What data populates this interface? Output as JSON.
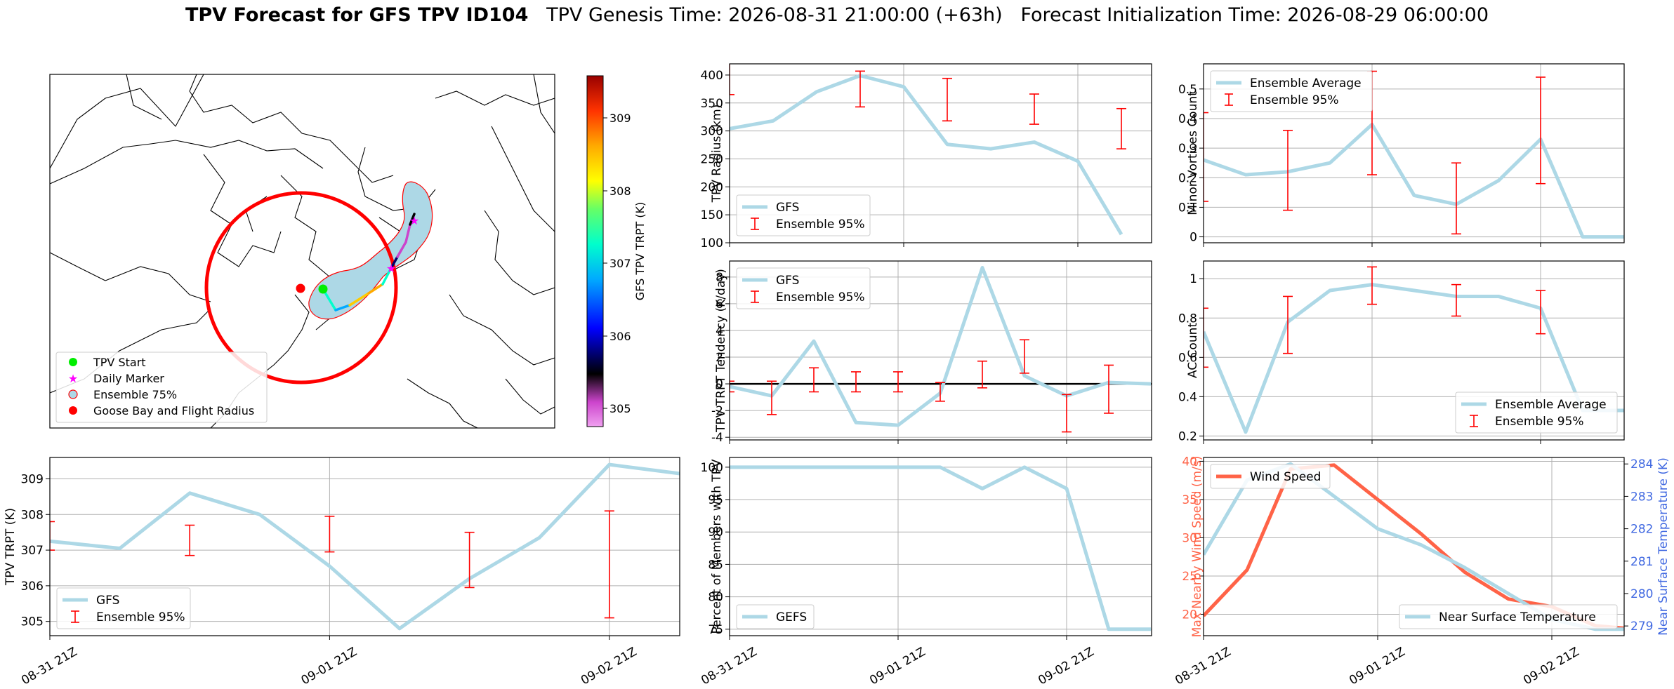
{
  "title": {
    "bold": "TPV Forecast for GFS TPV ID104",
    "rest": "   TPV Genesis Time: 2026-08-31 21:00:00 (+63h)   Forecast Initialization Time: 2026-08-29 06:00:00"
  },
  "map": {
    "legend": [
      "TPV Start",
      "Daily Marker",
      "Ensemble 75%",
      "Goose Bay and Flight Radius"
    ],
    "colorbar": {
      "label": "GFS TPV TRPT (K)",
      "ticks": [
        "309",
        "308",
        "307",
        "306",
        "305"
      ]
    },
    "colors": {
      "circle": "#ff0000",
      "ensemble_fill": "#add8e6",
      "start": "#00ee00",
      "marker": "#ff00ff",
      "goose_bay": "#ff0000"
    }
  },
  "chart_data": [
    {
      "id": "trpt",
      "type": "line",
      "ylabel": "TPV TRPT (K)",
      "x": [
        0,
        1,
        2,
        3,
        4,
        5,
        6,
        7,
        8,
        9,
        10
      ],
      "xticks": [
        "08-31 21Z",
        "09-01 21Z",
        "09-02 21Z"
      ],
      "xtick_positions": [
        0,
        4,
        8
      ],
      "xlim": [
        0,
        9
      ],
      "ylim": [
        304.6,
        309.6
      ],
      "yticks": [
        305,
        306,
        307,
        308,
        309
      ],
      "legend_loc": "lower left",
      "series": [
        {
          "name": "GFS",
          "type": "line",
          "color": "#add8e6",
          "values": [
            307.25,
            307.05,
            308.6,
            308.0,
            306.55,
            304.8,
            306.2,
            307.35,
            309.4,
            309.15,
            309.1
          ]
        }
      ],
      "errorbars": {
        "name": "Ensemble 95%",
        "color": "#ff0000",
        "x": [
          0,
          2,
          4,
          6,
          8
        ],
        "low": [
          307.0,
          306.85,
          306.95,
          305.95,
          305.1
        ],
        "high": [
          307.8,
          307.7,
          307.95,
          307.5,
          308.1
        ]
      }
    },
    {
      "id": "radius",
      "type": "line",
      "ylabel": "TPV Radius (km)",
      "x": [
        0,
        1,
        2,
        3,
        4,
        5,
        6,
        7,
        8,
        9
      ],
      "xlim": [
        0,
        9
      ],
      "ylim": [
        100,
        420
      ],
      "yticks": [
        100,
        150,
        200,
        250,
        300,
        350,
        400
      ],
      "legend_loc": "lower left",
      "series": [
        {
          "name": "GFS",
          "type": "line",
          "color": "#add8e6",
          "values": [
            304,
            318,
            370,
            399,
            379,
            276,
            268,
            280,
            246,
            115
          ]
        }
      ],
      "errorbars": {
        "name": "Ensemble 95%",
        "color": "#ff0000",
        "x": [
          0,
          3,
          5,
          7,
          9
        ],
        "low": [
          365,
          343,
          318,
          312,
          268
        ],
        "high": [
          430,
          407,
          394,
          366,
          340
        ]
      }
    },
    {
      "id": "tendency",
      "type": "line",
      "ylabel": "TPV TRPT Tendency (K/day)",
      "x": [
        0,
        1,
        2,
        3,
        4,
        5,
        6,
        7,
        8,
        9,
        10
      ],
      "xlim": [
        0,
        10
      ],
      "ylim": [
        -4.2,
        9.2
      ],
      "yticks": [
        -4,
        -2,
        0,
        2,
        4,
        6,
        8
      ],
      "legend_loc": "upper left",
      "zero_line": true,
      "series": [
        {
          "name": "GFS",
          "type": "line",
          "color": "#add8e6",
          "values": [
            -0.2,
            -0.9,
            3.2,
            -2.9,
            -3.1,
            -0.7,
            8.7,
            0.6,
            -0.9,
            0.1,
            0.0
          ]
        }
      ],
      "errorbars": {
        "name": "Ensemble 95%",
        "color": "#ff0000",
        "x": [
          0,
          1,
          2,
          3,
          4,
          5,
          6,
          7,
          8,
          9
        ],
        "low": [
          -0.6,
          -2.3,
          -0.6,
          -0.6,
          -0.6,
          -1.3,
          -0.3,
          0.8,
          -3.6,
          -2.2
        ],
        "high": [
          0.2,
          0.2,
          1.2,
          0.9,
          0.9,
          0.1,
          1.7,
          3.3,
          -0.8,
          1.4
        ]
      }
    },
    {
      "id": "gefs_pct",
      "type": "line",
      "ylabel": "Percent of Members with TPV",
      "x": [
        0,
        1,
        2,
        3,
        4,
        5,
        6,
        7,
        8,
        9,
        10
      ],
      "xticks": [
        "08-31 21Z",
        "09-01 21Z",
        "09-02 21Z"
      ],
      "xtick_positions": [
        0,
        4,
        8
      ],
      "xlim": [
        0,
        10
      ],
      "ylim": [
        74,
        101.5
      ],
      "yticks": [
        75,
        80,
        85,
        90,
        95,
        100
      ],
      "legend_loc": "lower left",
      "series": [
        {
          "name": "GEFS",
          "type": "line",
          "color": "#add8e6",
          "values": [
            100,
            100,
            100,
            100,
            100,
            100,
            96.7,
            100,
            96.7,
            75,
            75
          ]
        }
      ]
    },
    {
      "id": "minor",
      "type": "line",
      "ylabel": "Minor Vortices Count",
      "x": [
        0,
        1,
        2,
        3,
        4,
        5,
        6,
        7,
        8,
        9,
        10
      ],
      "xlim": [
        0,
        10
      ],
      "ylim": [
        -0.02,
        0.585
      ],
      "yticks": [
        0.0,
        0.1,
        0.2,
        0.3,
        0.4,
        0.5
      ],
      "legend_loc": "upper left",
      "series": [
        {
          "name": "Ensemble Average",
          "type": "line",
          "color": "#add8e6",
          "values": [
            0.26,
            0.21,
            0.22,
            0.25,
            0.38,
            0.14,
            0.11,
            0.19,
            0.33,
            0.0,
            0.0
          ]
        }
      ],
      "errorbars": {
        "name": "Ensemble 95%",
        "color": "#ff0000",
        "x": [
          0,
          2,
          4,
          6,
          8
        ],
        "low": [
          0.12,
          0.09,
          0.21,
          0.01,
          0.18
        ],
        "high": [
          0.42,
          0.36,
          0.56,
          0.25,
          0.54
        ]
      }
    },
    {
      "id": "ac",
      "type": "line",
      "ylabel": "AC Count",
      "x": [
        0,
        1,
        2,
        3,
        4,
        5,
        6,
        7,
        8,
        9,
        10
      ],
      "xlim": [
        0,
        10
      ],
      "ylim": [
        0.18,
        1.09
      ],
      "yticks": [
        0.2,
        0.4,
        0.6,
        0.8,
        1.0
      ],
      "legend_loc": "lower right",
      "series": [
        {
          "name": "Ensemble Average",
          "type": "line",
          "color": "#add8e6",
          "values": [
            0.73,
            0.22,
            0.78,
            0.94,
            0.97,
            0.94,
            0.91,
            0.91,
            0.85,
            0.33,
            0.33
          ]
        }
      ],
      "errorbars": {
        "name": "Ensemble 95%",
        "color": "#ff0000",
        "x": [
          0,
          2,
          4,
          6,
          8
        ],
        "low": [
          0.55,
          0.62,
          0.87,
          0.81,
          0.72
        ],
        "high": [
          0.85,
          0.91,
          1.06,
          0.97,
          0.94
        ]
      }
    },
    {
      "id": "wind",
      "type": "line",
      "ylabel": "Max Nearby Wind Speed (m/s)",
      "ylabel2": "Near Surface Temperature (K)",
      "x": [
        0,
        1,
        2,
        3,
        4,
        5,
        6,
        7,
        8,
        9,
        10
      ],
      "xticks": [
        "08-31 21Z",
        "09-01 21Z",
        "09-02 21Z"
      ],
      "xtick_positions": [
        0,
        4,
        8
      ],
      "xlim": [
        0,
        9
      ],
      "ylim": [
        17.2,
        40.5
      ],
      "yticks": [
        20,
        25,
        30,
        35,
        40
      ],
      "ylim2": [
        278.7,
        284.2
      ],
      "yticks2": [
        279,
        280,
        281,
        282,
        283,
        284
      ],
      "legend_loc": "upper left",
      "legend2_loc": "lower right",
      "series": [
        {
          "name": "Wind Speed",
          "type": "line",
          "axis": "left",
          "color": "#ff6347",
          "values": [
            19.8,
            25.8,
            39.0,
            39.5,
            35.0,
            30.5,
            25.5,
            22.0,
            21.0,
            18.5,
            18.0
          ]
        },
        {
          "name": "Near Surface Temperature",
          "type": "line",
          "axis": "right",
          "color": "#add8e6",
          "values": [
            281.2,
            283.5,
            284.0,
            283.0,
            282.0,
            281.5,
            280.8,
            280.0,
            279.2,
            278.9,
            278.9
          ]
        }
      ],
      "colors": {
        "left_axis": "#ff6347",
        "right_axis": "#4169e1"
      }
    }
  ]
}
